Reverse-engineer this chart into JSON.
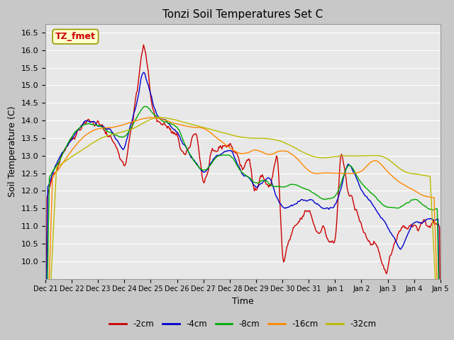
{
  "title": "Tonzi Soil Temperatures Set C",
  "xlabel": "Time",
  "ylabel": "Soil Temperature (C)",
  "ylim": [
    9.5,
    16.75
  ],
  "yticks": [
    10.0,
    10.5,
    11.0,
    11.5,
    12.0,
    12.5,
    13.0,
    13.5,
    14.0,
    14.5,
    15.0,
    15.5,
    16.0,
    16.5
  ],
  "fig_bg": "#c8c8c8",
  "plot_bg": "#e8e8e8",
  "grid_color": "#ffffff",
  "lines": [
    {
      "label": "-2cm",
      "color": "#cc0000",
      "lw": 1.0
    },
    {
      "label": "-4cm",
      "color": "#0000cc",
      "lw": 1.0
    },
    {
      "label": "-8cm",
      "color": "#00aa00",
      "lw": 1.0
    },
    {
      "label": "-16cm",
      "color": "#ff8800",
      "lw": 1.0
    },
    {
      "label": "-32cm",
      "color": "#bbbb00",
      "lw": 1.0
    }
  ],
  "xtick_labels": [
    "Dec 21",
    "Dec 22",
    "Dec 23",
    "Dec 24",
    "Dec 25",
    "Dec 26",
    "Dec 27",
    "Dec 28",
    "Dec 29",
    "Dec 30",
    "Dec 31",
    "Jan 1",
    "Jan 2",
    "Jan 3",
    "Jan 4",
    "Jan 5"
  ],
  "annotation_text": "TZ_fmet",
  "annotation_color": "#cc0000",
  "annotation_bg": "#ffffcc",
  "annotation_border": "#999900"
}
